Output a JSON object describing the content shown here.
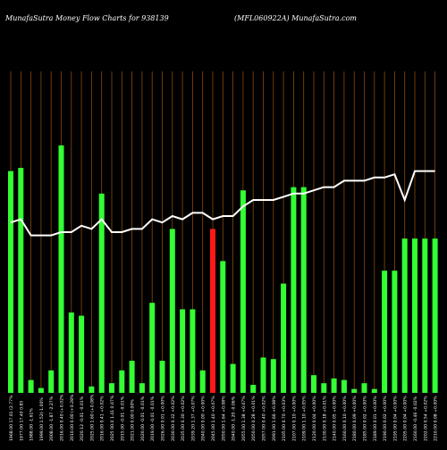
{
  "header": {
    "left": "MunafaSutra  Money Flow  Charts for 938139",
    "right": "(MFL060922A) MunafaSutra.com"
  },
  "colors": {
    "background": "#000000",
    "bar_up": "#33ff33",
    "bar_down": "#ff1a1a",
    "line": "#ffffff",
    "gridline": "#8a4a0a"
  },
  "chart_data": {
    "type": "bar",
    "overlay_type": "line",
    "grid": "vertical",
    "ylim": [
      0,
      100
    ],
    "categories": [
      "1968.00 17.01 (2.77%",
      "1977.00 17.40 0.85",
      "1988.00 -1.61%",
      "1999.00 1.52(-1.00%",
      "2008.00 -1.87 -2.27%",
      "2016.00 0.40 (+0.02%",
      "2010.00 0.00 (+0.28%",
      "2020.12 -0.01 -0.01%",
      "2025.00 1.60 (+0.08%",
      "2016.00 0.41 +0.02%",
      "2025 00.0 1.41 0.07%",
      "2015.00 -0.01 -0.01%",
      "2021.00 0.00 0.00%",
      "2020.00 -0.01 -0.01%",
      "2019.00 -0.01 -0.01%",
      "2026.00 0.01 +0.00%",
      "2030.00 0.32 +0.02%",
      "2035.00 0.30 +0.02%",
      "2039.20 1.37 +0.07%",
      "2040.00 0.00 +0.00%",
      "2045.00 1.40 +0.07%",
      "2050.00 1.64 +0.08%",
      "2040.00 -1.20 -0.06%",
      "2055.00 1.38 +0.07%",
      "2050.00 0.28 +0.01%",
      "2057.00 0.40 +0.02%",
      "2091.00 1.66 +0.08%",
      "2105.00 0.70 +0.03%",
      "2107.00 0.10 +0.00%",
      "2109.00 1.10 +0.05%",
      "2120.00 0.04 +0.00%",
      "2130.00 0.18 +0.01%",
      "2140.00 0.05 +0.00%",
      "2160.00 0.10 +0.00%",
      "2180.00 0.09 +0.00%",
      "2185.00 0.02 +0.00%",
      "2189.00 0.01 +0.00%",
      "2190.00 0.02 +0.00%",
      "2195.00 0.04 +0.00%",
      "2205.00 0.04 +0.00%",
      "2160.00 -0.46 -0.02%",
      "2202.00 0.54 +0.02%",
      "2210.00 0.08 +0.00%"
    ],
    "series": [
      {
        "kind": "bar",
        "values": [
          69,
          70,
          4,
          1.5,
          7,
          77,
          25,
          24,
          2,
          62,
          3,
          7,
          10,
          3,
          28,
          10,
          51,
          26,
          26,
          7,
          51,
          41,
          9,
          63,
          2.5,
          11,
          10.5,
          34,
          64,
          64,
          5.5,
          3,
          4.5,
          4,
          1.2,
          3,
          1.2,
          38,
          38,
          48,
          48,
          48,
          48
        ],
        "direction": [
          "up",
          "up",
          "up",
          "up",
          "up",
          "up",
          "up",
          "up",
          "up",
          "up",
          "up",
          "up",
          "up",
          "up",
          "up",
          "up",
          "up",
          "up",
          "up",
          "up",
          "down",
          "up",
          "up",
          "up",
          "up",
          "up",
          "up",
          "up",
          "up",
          "up",
          "up",
          "up",
          "up",
          "up",
          "up",
          "up",
          "up",
          "up",
          "up",
          "up",
          "up",
          "up",
          "up"
        ]
      },
      {
        "kind": "line",
        "values": [
          53,
          54,
          49,
          49,
          49,
          50,
          50,
          52,
          51,
          54,
          50,
          50,
          51,
          51,
          54,
          53,
          55,
          54,
          56,
          56,
          54,
          55,
          55,
          58,
          60,
          60,
          60,
          61,
          62,
          62,
          63,
          64,
          64,
          66,
          66,
          66,
          67,
          67,
          68,
          60,
          69,
          69,
          69
        ]
      }
    ]
  }
}
